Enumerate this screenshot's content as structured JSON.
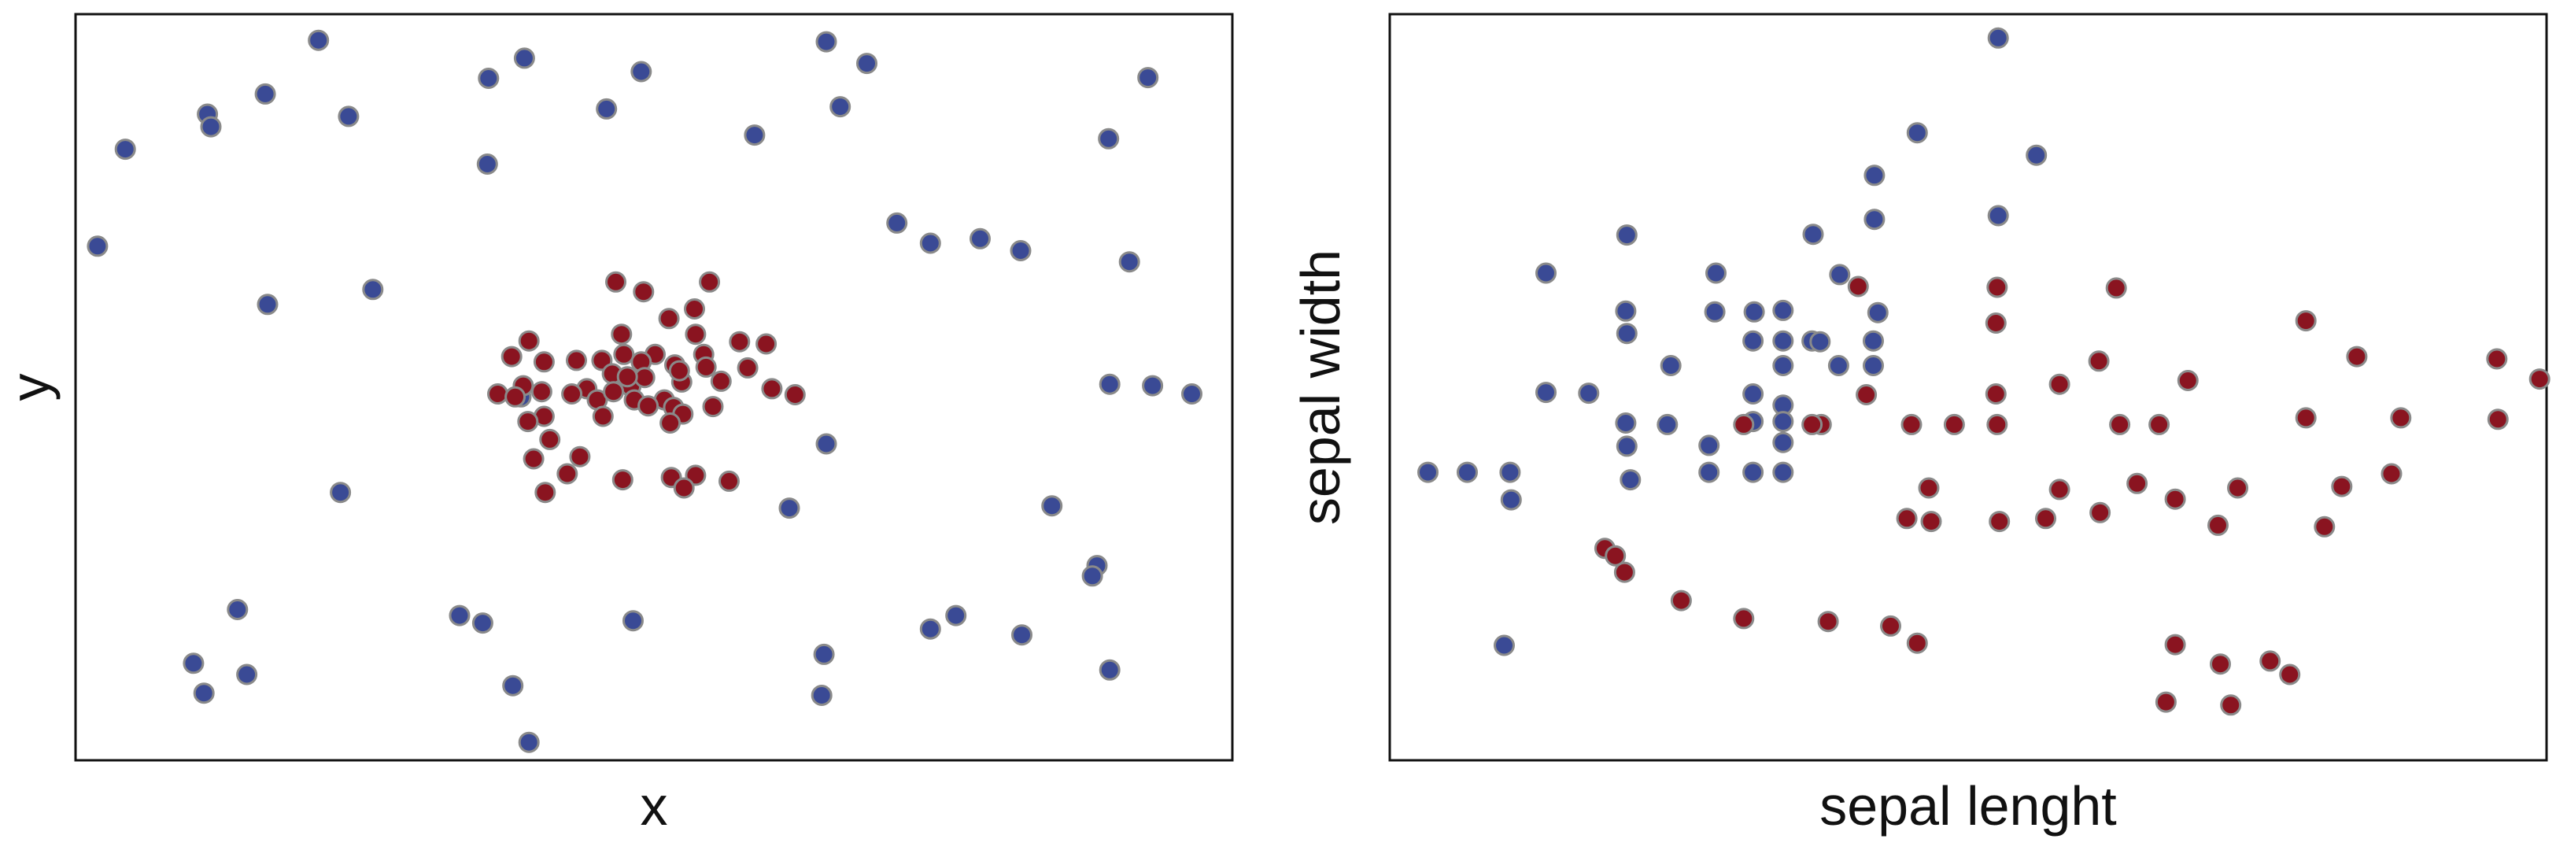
{
  "colors": {
    "blue": "#3a4a95",
    "red": "#8a1420",
    "frame": "#111111",
    "marker_edge": "#8a8a8a",
    "text": "#111111"
  },
  "chart_data": [
    {
      "type": "scatter",
      "title": "",
      "xlabel": "x",
      "ylabel": "y",
      "xlim": [
        0,
        100
      ],
      "ylim": [
        0,
        100
      ],
      "ticks": false,
      "grid": false,
      "legend": null,
      "series": [
        {
          "color": "blue",
          "points": [
            [
              21,
              96.5
            ],
            [
              38.8,
              94.1
            ],
            [
              64.9,
              96.3
            ],
            [
              68.4,
              93.4
            ],
            [
              35.7,
              91.4
            ],
            [
              48.9,
              92.3
            ],
            [
              16.4,
              89.3
            ],
            [
              11.4,
              86.6
            ],
            [
              11.7,
              84.9
            ],
            [
              23.6,
              86.3
            ],
            [
              45.9,
              87.3
            ],
            [
              66.1,
              87.6
            ],
            [
              4.3,
              81.9
            ],
            [
              35.6,
              79.9
            ],
            [
              58.7,
              83.8
            ],
            [
              89.3,
              83.3
            ],
            [
              92.7,
              91.5
            ],
            [
              73.9,
              69.3
            ],
            [
              71,
              72
            ],
            [
              78.2,
              69.9
            ],
            [
              81.7,
              68.3
            ],
            [
              1.9,
              68.9
            ],
            [
              25.7,
              63.1
            ],
            [
              16.6,
              61.1
            ],
            [
              91.1,
              66.8
            ],
            [
              89.4,
              50.4
            ],
            [
              93.1,
              50.2
            ],
            [
              96.5,
              49.1
            ],
            [
              38.5,
              48.7
            ],
            [
              64.9,
              42.4
            ],
            [
              22.9,
              35.9
            ],
            [
              61.7,
              33.8
            ],
            [
              84.4,
              34.1
            ],
            [
              88.3,
              26.1
            ],
            [
              87.9,
              24.7
            ],
            [
              14,
              20.2
            ],
            [
              33.2,
              19.4
            ],
            [
              35.2,
              18.4
            ],
            [
              48.2,
              18.7
            ],
            [
              73.9,
              17.6
            ],
            [
              76.1,
              19.4
            ],
            [
              81.8,
              16.8
            ],
            [
              10.2,
              13
            ],
            [
              64.7,
              14.2
            ],
            [
              14.8,
              11.5
            ],
            [
              89.4,
              12.1
            ],
            [
              11.1,
              9
            ],
            [
              37.8,
              10
            ],
            [
              64.5,
              8.7
            ],
            [
              39.2,
              2.4
            ]
          ]
        },
        {
          "color": "red",
          "points": [
            [
              46.7,
              64.1
            ],
            [
              54.8,
              64.1
            ],
            [
              49.1,
              62.8
            ],
            [
              53.5,
              60.5
            ],
            [
              51.3,
              59.2
            ],
            [
              47.2,
              57.1
            ],
            [
              53.6,
              57.1
            ],
            [
              39.2,
              56.2
            ],
            [
              50.1,
              54.4
            ],
            [
              54.3,
              54.4
            ],
            [
              57.4,
              56.1
            ],
            [
              59.7,
              55.8
            ],
            [
              37.7,
              54.1
            ],
            [
              40.5,
              53.4
            ],
            [
              43.3,
              53.6
            ],
            [
              45.5,
              53.6
            ],
            [
              47.4,
              54.4
            ],
            [
              48.9,
              53.4
            ],
            [
              51.8,
              53
            ],
            [
              54.5,
              52.7
            ],
            [
              58.1,
              52.6
            ],
            [
              38.7,
              50.2
            ],
            [
              40.3,
              49.4
            ],
            [
              44.2,
              49.8
            ],
            [
              46.4,
              51.8
            ],
            [
              48,
              50.1
            ],
            [
              49.2,
              51.3
            ],
            [
              52.4,
              50.7
            ],
            [
              55.8,
              50.8
            ],
            [
              60.2,
              49.8
            ],
            [
              62.2,
              49
            ],
            [
              36.5,
              49.1
            ],
            [
              38,
              48.7
            ],
            [
              42.9,
              49.1
            ],
            [
              45.1,
              48.3
            ],
            [
              46.5,
              49.4
            ],
            [
              48.3,
              48.3
            ],
            [
              50.9,
              48.3
            ],
            [
              55.1,
              47.4
            ],
            [
              40.5,
              46.1
            ],
            [
              45.6,
              46.1
            ],
            [
              49.5,
              47.5
            ],
            [
              51.7,
              47.3
            ],
            [
              52.5,
              46.4
            ],
            [
              39.1,
              45.4
            ],
            [
              51.4,
              45.2
            ],
            [
              41,
              43
            ],
            [
              39.6,
              40.4
            ],
            [
              43.6,
              40.7
            ],
            [
              53.6,
              38.2
            ],
            [
              47.3,
              37.6
            ],
            [
              42.5,
              38.4
            ],
            [
              51.5,
              37.9
            ],
            [
              52.6,
              36.5
            ],
            [
              56.5,
              37.4
            ],
            [
              40.6,
              35.9
            ],
            [
              52.2,
              52.2
            ],
            [
              47.7,
              51.4
            ]
          ]
        }
      ]
    },
    {
      "type": "scatter",
      "title": "",
      "xlabel": "sepal lenght",
      "ylabel": "sepal width",
      "xlim": [
        0,
        100
      ],
      "ylim": [
        0,
        100
      ],
      "ticks": false,
      "grid": false,
      "legend": null,
      "series": [
        {
          "color": "blue",
          "points": [
            [
              52.6,
              96.8
            ],
            [
              45.6,
              84.1
            ],
            [
              55.9,
              81.1
            ],
            [
              41.9,
              78.4
            ],
            [
              36.6,
              70.5
            ],
            [
              41.9,
              72.5
            ],
            [
              52.6,
              73
            ],
            [
              20.5,
              70.4
            ],
            [
              28.2,
              65.3
            ],
            [
              38.9,
              65.1
            ],
            [
              42.2,
              60
            ],
            [
              34,
              60.3
            ],
            [
              13.5,
              65.3
            ],
            [
              20.4,
              60.2
            ],
            [
              28.1,
              60.1
            ],
            [
              31.5,
              60.1
            ],
            [
              31.4,
              56.2
            ],
            [
              34,
              56.2
            ],
            [
              36.5,
              56.2
            ],
            [
              41.8,
              56.2
            ],
            [
              20.5,
              57.2
            ],
            [
              24.3,
              52.9
            ],
            [
              34,
              52.9
            ],
            [
              37.2,
              56.1
            ],
            [
              38.8,
              52.9
            ],
            [
              41.8,
              52.9
            ],
            [
              13.5,
              49.3
            ],
            [
              31.4,
              49.1
            ],
            [
              34,
              47.6
            ],
            [
              20.4,
              45.2
            ],
            [
              24,
              45
            ],
            [
              17.2,
              49.2
            ],
            [
              31.4,
              45.4
            ],
            [
              34,
              45.4
            ],
            [
              34,
              42.6
            ],
            [
              27.6,
              42.2
            ],
            [
              20.5,
              42.1
            ],
            [
              27.6,
              38.6
            ],
            [
              31.4,
              38.6
            ],
            [
              34,
              38.6
            ],
            [
              20.8,
              37.6
            ],
            [
              6.7,
              38.6
            ],
            [
              10.4,
              38.6
            ],
            [
              10.5,
              34.9
            ],
            [
              3.3,
              38.6
            ],
            [
              9.9,
              15.4
            ]
          ]
        },
        {
          "color": "red",
          "points": [
            [
              40.5,
              63.5
            ],
            [
              52.5,
              63.4
            ],
            [
              62.8,
              63.3
            ],
            [
              52.4,
              58.6
            ],
            [
              79.2,
              58.9
            ],
            [
              83.6,
              54.1
            ],
            [
              61.3,
              53.5
            ],
            [
              79.2,
              45.9
            ],
            [
              87.4,
              45.9
            ],
            [
              95.7,
              53.8
            ],
            [
              99.4,
              51.1
            ],
            [
              95.8,
              45.7
            ],
            [
              69,
              50.9
            ],
            [
              57.9,
              50.4
            ],
            [
              52.4,
              49.1
            ],
            [
              41.2,
              49
            ],
            [
              37.3,
              45
            ],
            [
              48.8,
              45
            ],
            [
              63.1,
              45
            ],
            [
              66.5,
              45
            ],
            [
              52.5,
              45
            ],
            [
              45.1,
              45
            ],
            [
              30.6,
              45
            ],
            [
              36.5,
              45
            ],
            [
              46.6,
              36.5
            ],
            [
              57.9,
              36.3
            ],
            [
              67.9,
              35
            ],
            [
              73.3,
              36.5
            ],
            [
              82.3,
              36.7
            ],
            [
              86.6,
              38.4
            ],
            [
              46.8,
              32
            ],
            [
              52.7,
              32
            ],
            [
              61.4,
              33.2
            ],
            [
              64.6,
              37.1
            ],
            [
              44.7,
              32.4
            ],
            [
              56.7,
              32.4
            ],
            [
              71.6,
              31.5
            ],
            [
              80.8,
              31.3
            ],
            [
              18.6,
              28.4
            ],
            [
              19.5,
              27.4
            ],
            [
              20.3,
              25.2
            ],
            [
              25.2,
              21.4
            ],
            [
              30.6,
              19
            ],
            [
              37.9,
              18.6
            ],
            [
              43.3,
              18
            ],
            [
              45.6,
              15.7
            ],
            [
              67.9,
              15.5
            ],
            [
              71.8,
              12.9
            ],
            [
              76.1,
              13.3
            ],
            [
              67.1,
              7.8
            ],
            [
              72.7,
              7.4
            ],
            [
              77.8,
              11.5
            ]
          ]
        }
      ]
    }
  ]
}
